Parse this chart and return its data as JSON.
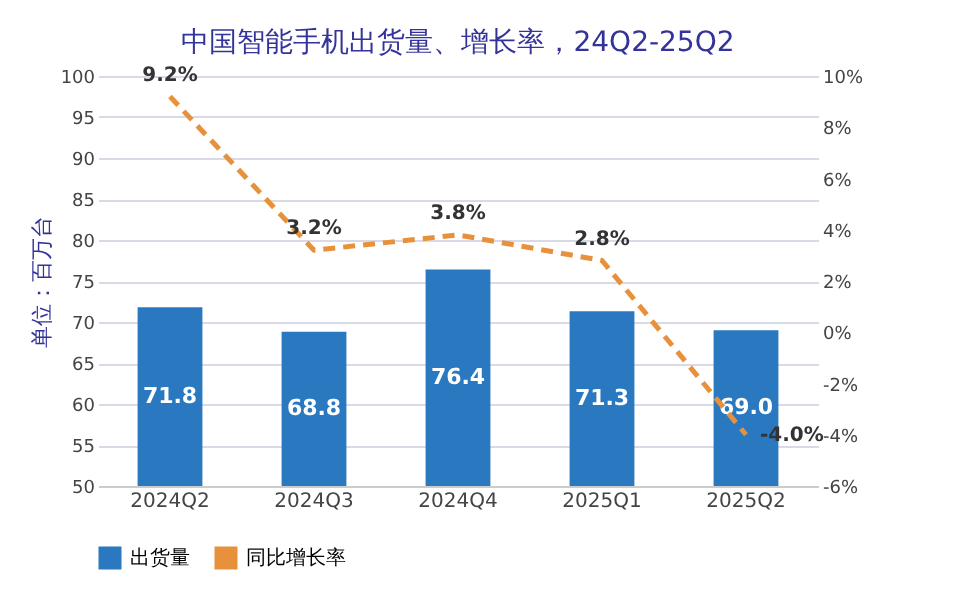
{
  "chart_data": {
    "type": "bar",
    "title": "中国智能手机出货量、增长率，24Q2-25Q2",
    "ylabel": "单位：百万台",
    "categories": [
      "2024Q2",
      "2024Q3",
      "2024Q4",
      "2025Q1",
      "2025Q2"
    ],
    "series": [
      {
        "name": "出货量",
        "type": "bar",
        "color": "#2a78c0",
        "values": [
          71.8,
          68.8,
          76.4,
          71.3,
          69.0
        ],
        "value_labels": [
          "71.8",
          "68.8",
          "76.4",
          "71.3",
          "69.0"
        ]
      },
      {
        "name": "同比增长率",
        "type": "line",
        "axis": "y2",
        "color": "#e8913c",
        "line_style": "dashed",
        "values": [
          9.2,
          3.2,
          3.8,
          2.8,
          -4.0
        ],
        "value_labels": [
          "9.2%",
          "3.2%",
          "3.8%",
          "2.8%",
          "-4.0%"
        ]
      }
    ],
    "ylim": [
      50,
      100
    ],
    "yticks": [
      50,
      55,
      60,
      65,
      70,
      75,
      80,
      85,
      90,
      95,
      100
    ],
    "y2lim": [
      -6,
      10
    ],
    "y2ticks": [
      {
        "value": -6,
        "label": "-6%"
      },
      {
        "value": -4,
        "label": "-4%"
      },
      {
        "value": -2,
        "label": "-2%"
      },
      {
        "value": 0,
        "label": "0%"
      },
      {
        "value": 2,
        "label": "2%"
      },
      {
        "value": 4,
        "label": "4%"
      },
      {
        "value": 6,
        "label": "6%"
      },
      {
        "value": 8,
        "label": "8%"
      },
      {
        "value": 10,
        "label": "10%"
      }
    ],
    "grid": "y",
    "legend": "bottom"
  }
}
